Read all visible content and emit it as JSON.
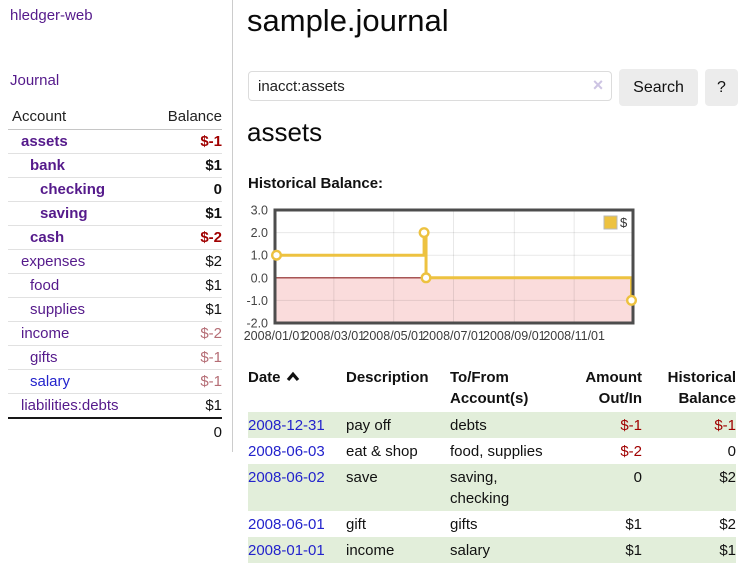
{
  "colors": {
    "accent_purple": "#551a8b",
    "link_blue": "#2323cc",
    "negative": "#a00000",
    "negative_soft": "#b56d75",
    "chart_gold": "#edc240",
    "stripe_green": "#e2eeda",
    "chart_negative_bg": "#fadcdc",
    "zero_line": "#8a1f1f"
  },
  "app": {
    "brand": "hledger-web",
    "nav": [
      {
        "label": "Journal"
      }
    ]
  },
  "page": {
    "title": "sample.journal"
  },
  "search": {
    "value": "inacct:assets",
    "clear_icon": "×",
    "search_button": "Search",
    "help_button": "?"
  },
  "account_view": {
    "heading": "assets",
    "chart_label": "Historical Balance:"
  },
  "chart_data": {
    "type": "line",
    "step": true,
    "title": "Historical Balance:",
    "x_range": [
      "2008/01/01",
      "2008/12/31"
    ],
    "ylim": [
      -2,
      3
    ],
    "y_ticks": [
      "3.0",
      "2.0",
      "1.0",
      "0.0",
      "-1.0",
      "-2.0"
    ],
    "x_ticks": [
      "2008/01/01",
      "2008/03/01",
      "2008/05/01",
      "2008/07/01",
      "2008/09/01",
      "2008/11/01"
    ],
    "series": [
      {
        "name": "$",
        "points": [
          {
            "x": "2008/01/01",
            "y": 1
          },
          {
            "x": "2008/06/01",
            "y": 2
          },
          {
            "x": "2008/06/03",
            "y": 0
          },
          {
            "x": "2008/12/31",
            "y": -1
          }
        ]
      }
    ],
    "legend_position": "top-right",
    "grid": true
  },
  "sidebar": {
    "columns": [
      "Account",
      "Balance"
    ],
    "accounts": [
      {
        "name": "assets",
        "balance": "$-1"
      },
      {
        "name": "bank",
        "balance": "$1"
      },
      {
        "name": "checking",
        "balance": "0"
      },
      {
        "name": "saving",
        "balance": "$1"
      },
      {
        "name": "cash",
        "balance": "$-2"
      },
      {
        "name": "expenses",
        "balance": "$2"
      },
      {
        "name": "food",
        "balance": "$1"
      },
      {
        "name": "supplies",
        "balance": "$1"
      },
      {
        "name": "income",
        "balance": "$-2"
      },
      {
        "name": "gifts",
        "balance": "$-1"
      },
      {
        "name": "salary",
        "balance": "$-1"
      },
      {
        "name": "liabilities:debts",
        "balance": "$1"
      }
    ],
    "total": "0"
  },
  "register": {
    "columns": [
      {
        "line1": "Date",
        "line2": ""
      },
      {
        "line1": "Description",
        "line2": ""
      },
      {
        "line1": "To/From",
        "line2": "Account(s)"
      },
      {
        "line1": "Amount",
        "line2": "Out/In"
      },
      {
        "line1": "Historical",
        "line2": "Balance"
      }
    ],
    "rows": [
      {
        "date": "2008-12-31",
        "description": "pay off",
        "tofrom": "debts",
        "amount": "$-1",
        "balance": "$-1"
      },
      {
        "date": "2008-06-03",
        "description": "eat & shop",
        "tofrom": "food, supplies",
        "amount": "$-2",
        "balance": "0"
      },
      {
        "date": "2008-06-02",
        "description": "save",
        "tofrom": "saving,\nchecking",
        "amount": "0",
        "balance": "$2"
      },
      {
        "date": "2008-06-01",
        "description": "gift",
        "tofrom": "gifts",
        "amount": "$1",
        "balance": "$2"
      },
      {
        "date": "2008-01-01",
        "description": "income",
        "tofrom": "salary",
        "amount": "$1",
        "balance": "$1"
      }
    ]
  }
}
